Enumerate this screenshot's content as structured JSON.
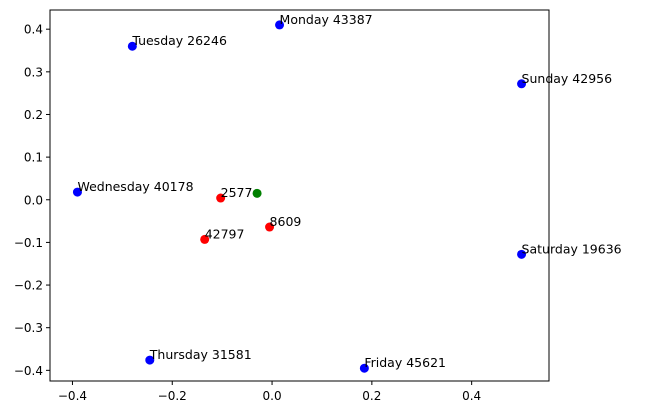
{
  "chart_data": {
    "type": "scatter",
    "title": "",
    "xlabel": "",
    "ylabel": "",
    "xlim": [
      -0.445,
      0.555
    ],
    "ylim": [
      -0.425,
      0.445
    ],
    "grid": false,
    "x_ticks": [
      -0.4,
      -0.2,
      0.0,
      0.2,
      0.4
    ],
    "x_tick_labels": [
      "−0.4",
      "−0.2",
      "0.0",
      "0.2",
      "0.4"
    ],
    "y_ticks": [
      -0.4,
      -0.3,
      -0.2,
      -0.1,
      0.0,
      0.1,
      0.2,
      0.3,
      0.4
    ],
    "y_tick_labels": [
      "−0.4",
      "−0.3",
      "−0.2",
      "−0.1",
      "0.0",
      "0.1",
      "0.2",
      "0.3",
      "0.4"
    ],
    "colors": {
      "blue": "#0000ff",
      "red": "#ff0000",
      "green": "#008000"
    },
    "points": [
      {
        "x": 0.015,
        "y": 0.41,
        "color": "blue",
        "label": "Monday 43387"
      },
      {
        "x": -0.28,
        "y": 0.36,
        "color": "blue",
        "label": "Tuesday 26246"
      },
      {
        "x": 0.5,
        "y": 0.272,
        "color": "blue",
        "label": "Sunday 42956"
      },
      {
        "x": -0.39,
        "y": 0.018,
        "color": "blue",
        "label": "Wednesday 40178"
      },
      {
        "x": 0.5,
        "y": -0.128,
        "color": "blue",
        "label": "Saturday 19636"
      },
      {
        "x": -0.245,
        "y": -0.376,
        "color": "blue",
        "label": "Thursday 31581"
      },
      {
        "x": 0.185,
        "y": -0.395,
        "color": "blue",
        "label": "Friday 45621"
      },
      {
        "x": -0.103,
        "y": 0.004,
        "color": "red",
        "label": "2577"
      },
      {
        "x": -0.135,
        "y": -0.093,
        "color": "red",
        "label": "42797"
      },
      {
        "x": -0.005,
        "y": -0.064,
        "color": "red",
        "label": "8609"
      },
      {
        "x": -0.03,
        "y": 0.015,
        "color": "green",
        "label": ""
      }
    ]
  }
}
